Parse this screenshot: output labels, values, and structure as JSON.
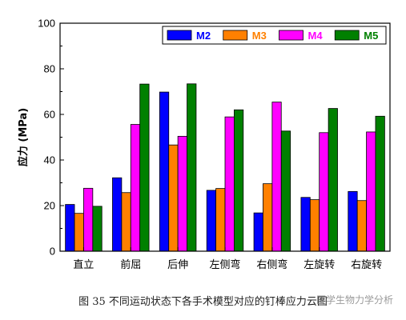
{
  "chart_data": {
    "type": "bar",
    "title": "",
    "xlabel": "",
    "ylabel": "应力 (MPa)",
    "ylim": [
      0,
      100
    ],
    "yticks": [
      0,
      20,
      40,
      60,
      80,
      100
    ],
    "grid": false,
    "legend_position": "top-right",
    "categories": [
      "直立",
      "前屈",
      "后伸",
      "左侧弯",
      "右侧弯",
      "左旋转",
      "右旋转"
    ],
    "series": [
      {
        "name": "M2",
        "color": "#0000ff",
        "values": [
          20.5,
          32.2,
          69.8,
          26.7,
          16.8,
          23.6,
          26.2
        ]
      },
      {
        "name": "M3",
        "color": "#ff8000",
        "values": [
          16.6,
          25.7,
          46.6,
          27.5,
          29.6,
          22.6,
          22.2
        ]
      },
      {
        "name": "M4",
        "color": "#ff00ff",
        "values": [
          27.6,
          55.6,
          50.4,
          58.9,
          65.4,
          52.0,
          52.3
        ]
      },
      {
        "name": "M5",
        "color": "#008000",
        "values": [
          19.7,
          73.3,
          73.4,
          62.0,
          52.7,
          62.6,
          59.2
        ]
      }
    ]
  },
  "caption": "图 35  不同运动状态下各手术模型对应的钉棒应力云图",
  "watermark": "医学生物力学分析"
}
